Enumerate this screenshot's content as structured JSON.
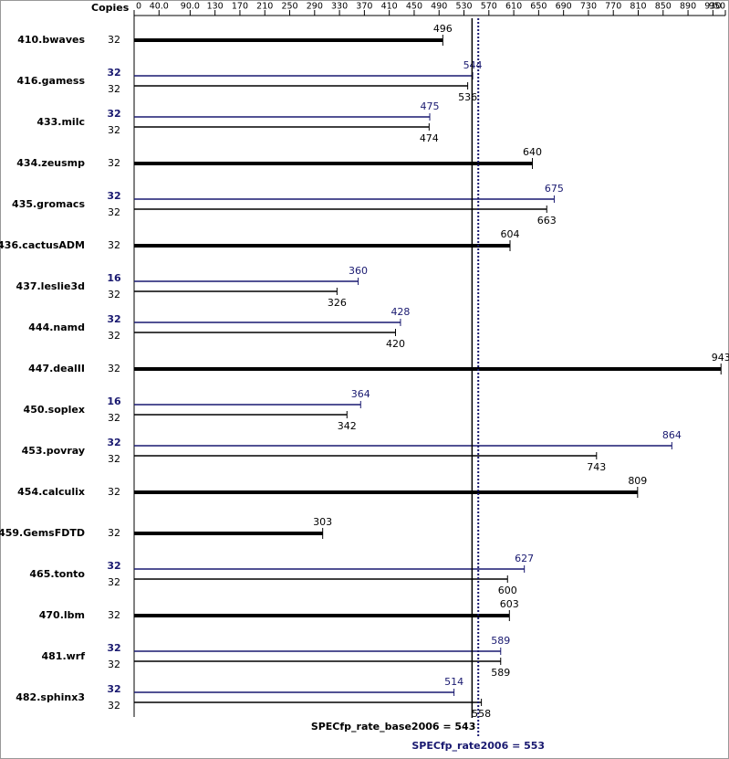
{
  "chart_data": {
    "type": "bar",
    "orientation": "horizontal",
    "copies_header": "Copies",
    "xlim": [
      0,
      950
    ],
    "xticks": [
      0,
      {
        "value": 40,
        "label": "40.0"
      },
      {
        "value": 90,
        "label": "90.0"
      },
      130,
      170,
      210,
      250,
      290,
      330,
      370,
      410,
      450,
      490,
      530,
      570,
      610,
      650,
      690,
      730,
      770,
      810,
      850,
      890,
      930,
      950
    ],
    "categories": [
      "410.bwaves",
      "416.gamess",
      "433.milc",
      "434.zeusmp",
      "435.gromacs",
      "436.cactusADM",
      "437.leslie3d",
      "444.namd",
      "447.dealII",
      "450.soplex",
      "453.povray",
      "454.calculix",
      "459.GemsFDTD",
      "465.tonto",
      "470.lbm",
      "481.wrf",
      "482.sphinx3"
    ],
    "base": {
      "color": "#000000",
      "copies": [
        32,
        32,
        32,
        32,
        32,
        32,
        32,
        32,
        32,
        32,
        32,
        32,
        32,
        32,
        32,
        32,
        32
      ],
      "values": [
        496,
        536,
        474,
        640,
        663,
        604,
        326,
        420,
        943,
        342,
        743,
        809,
        303,
        600,
        603,
        589,
        558
      ]
    },
    "peak": {
      "color": "#191970",
      "copies": [
        null,
        32,
        32,
        null,
        32,
        null,
        16,
        32,
        null,
        16,
        32,
        null,
        null,
        32,
        null,
        32,
        32
      ],
      "values": [
        null,
        544,
        475,
        null,
        675,
        null,
        360,
        428,
        null,
        364,
        864,
        null,
        null,
        627,
        null,
        589,
        514
      ]
    },
    "reference_lines": [
      {
        "label": "SPECfp_rate_base2006 = 543",
        "value": 543,
        "color": "#000000",
        "style": "solid"
      },
      {
        "label": "SPECfp_rate2006 = 553",
        "value": 553,
        "color": "#191970",
        "style": "dotted"
      }
    ]
  }
}
